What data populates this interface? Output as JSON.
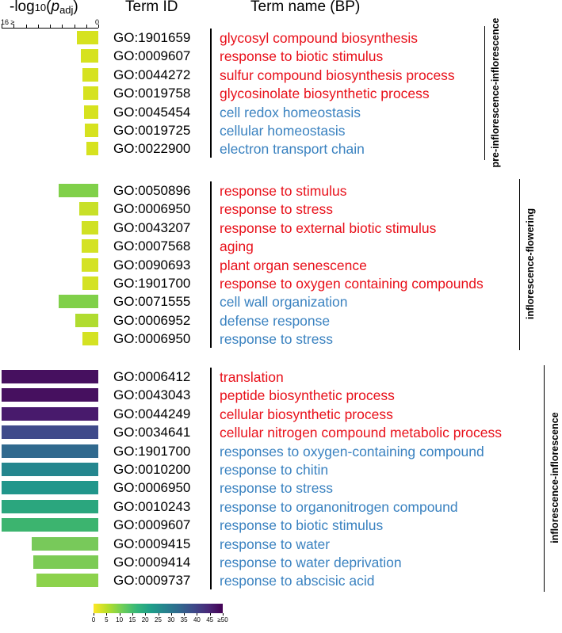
{
  "headers": {
    "axis_prefix": "-log",
    "axis_base": "10",
    "axis_open": "(",
    "axis_p": "p",
    "axis_p_sub": "adj",
    "axis_close": ")",
    "term_id": "Term ID",
    "term_name": "Term name (BP)"
  },
  "colors": {
    "red_term": "#e8101a",
    "blue_term": "#3a82c0"
  },
  "chart_data": {
    "type": "bar",
    "orientation": "horizontal",
    "value_label": "-log10(padj)",
    "groups": [
      {
        "name": "pre-inflorescence-inflorescence",
        "axis_min_label": "16 ≥",
        "axis_max_label": "0",
        "xlim": [
          0,
          16
        ],
        "split_after": 4,
        "rows": [
          {
            "id": "GO:1901659",
            "name": "glycosyl compound biosynthesis",
            "value": 3.6,
            "category": "red",
            "color": "#d6e21f"
          },
          {
            "id": "GO:0009607",
            "name": "response to biotic stimulus",
            "value": 2.9,
            "category": "red",
            "color": "#d6e21f"
          },
          {
            "id": "GO:0044272",
            "name": "sulfur compound biosynthesis process",
            "value": 2.6,
            "category": "red",
            "color": "#d6e21f"
          },
          {
            "id": "GO:0019758",
            "name": "glycosinolate biosynthetic process",
            "value": 2.5,
            "category": "red",
            "color": "#d6e21f"
          },
          {
            "id": "GO:0045454",
            "name": "cell redox homeostasis",
            "value": 2.4,
            "category": "blue",
            "color": "#d6e21f"
          },
          {
            "id": "GO:0019725",
            "name": "cellular homeostasis",
            "value": 2.2,
            "category": "blue",
            "color": "#d6e21f"
          },
          {
            "id": "GO:0022900",
            "name": "electron transport chain",
            "value": 2.0,
            "category": "blue",
            "color": "#d6e21f"
          }
        ]
      },
      {
        "name": "inflorescence-flowering",
        "xlim": [
          0,
          16
        ],
        "split_after": 6,
        "rows": [
          {
            "id": "GO:0050896",
            "name": "response to stimulus",
            "value": 6.5,
            "category": "red",
            "color": "#80d04a"
          },
          {
            "id": "GO:0006950",
            "name": "response to stress",
            "value": 3.1,
            "category": "red",
            "color": "#c8e028"
          },
          {
            "id": "GO:0043207",
            "name": "response to external biotic stimulus",
            "value": 2.8,
            "category": "red",
            "color": "#d0e124"
          },
          {
            "id": "GO:0007568",
            "name": "aging",
            "value": 2.7,
            "category": "red",
            "color": "#d4e223"
          },
          {
            "id": "GO:0090693",
            "name": "plant organ senescence",
            "value": 2.7,
            "category": "red",
            "color": "#d4e223"
          },
          {
            "id": "GO:1901700",
            "name": "response to oxygen containing compounds",
            "value": 2.6,
            "category": "red",
            "color": "#d4e223"
          },
          {
            "id": "GO:0071555",
            "name": "cell wall organization",
            "value": 6.6,
            "category": "blue",
            "color": "#80d04a"
          },
          {
            "id": "GO:0006952",
            "name": "defense response",
            "value": 3.8,
            "category": "blue",
            "color": "#b0dc30"
          },
          {
            "id": "GO:0006950",
            "name": "response to stress",
            "value": 2.6,
            "category": "blue",
            "color": "#d4e223"
          }
        ]
      },
      {
        "name": "inflorescence-inflorescence",
        "xlim": [
          0,
          16
        ],
        "split_after": 4,
        "rows": [
          {
            "id": "GO:0006412",
            "name": "translation",
            "value": 16,
            "category": "red",
            "color": "#46105f"
          },
          {
            "id": "GO:0043043",
            "name": "peptide biosynthetic process",
            "value": 16,
            "category": "red",
            "color": "#46105f"
          },
          {
            "id": "GO:0044249",
            "name": "cellular biosynthetic process",
            "value": 16,
            "category": "red",
            "color": "#481a6c"
          },
          {
            "id": "GO:0034641",
            "name": "cellular nitrogen compound metabolic process",
            "value": 16,
            "category": "red",
            "color": "#3f4a8a"
          },
          {
            "id": "GO:1901700",
            "name": "responses to oxygen-containing compound",
            "value": 16,
            "category": "blue",
            "color": "#30698e"
          },
          {
            "id": "GO:0010200",
            "name": "response to chitin",
            "value": 16,
            "category": "blue",
            "color": "#24868e"
          },
          {
            "id": "GO:0006950",
            "name": "response to stress",
            "value": 16,
            "category": "blue",
            "color": "#21968b"
          },
          {
            "id": "GO:0010243",
            "name": "response to organonitrogen compound",
            "value": 16,
            "category": "blue",
            "color": "#2ba67e"
          },
          {
            "id": "GO:0009607",
            "name": "response to biotic stimulus",
            "value": 16,
            "category": "blue",
            "color": "#3cb46f"
          },
          {
            "id": "GO:0009415",
            "name": "response to water",
            "value": 11,
            "category": "blue",
            "color": "#78c95a"
          },
          {
            "id": "GO:0009414",
            "name": "response to water deprivation",
            "value": 10.8,
            "category": "blue",
            "color": "#7ccb55"
          },
          {
            "id": "GO:0009737",
            "name": "response to abscisic acid",
            "value": 10.2,
            "category": "blue",
            "color": "#8cd24c"
          }
        ]
      }
    ],
    "colorbar": {
      "range": [
        0,
        50
      ],
      "ticks": [
        "0",
        "5",
        "10",
        "15",
        "20",
        "25",
        "30",
        "35",
        "40",
        "45",
        "≥50"
      ],
      "colors": [
        "#fde725",
        "#b5de2b",
        "#6ece58",
        "#35b779",
        "#1f9e89",
        "#26828e",
        "#31688e",
        "#3e4989",
        "#482878",
        "#440154"
      ]
    }
  }
}
